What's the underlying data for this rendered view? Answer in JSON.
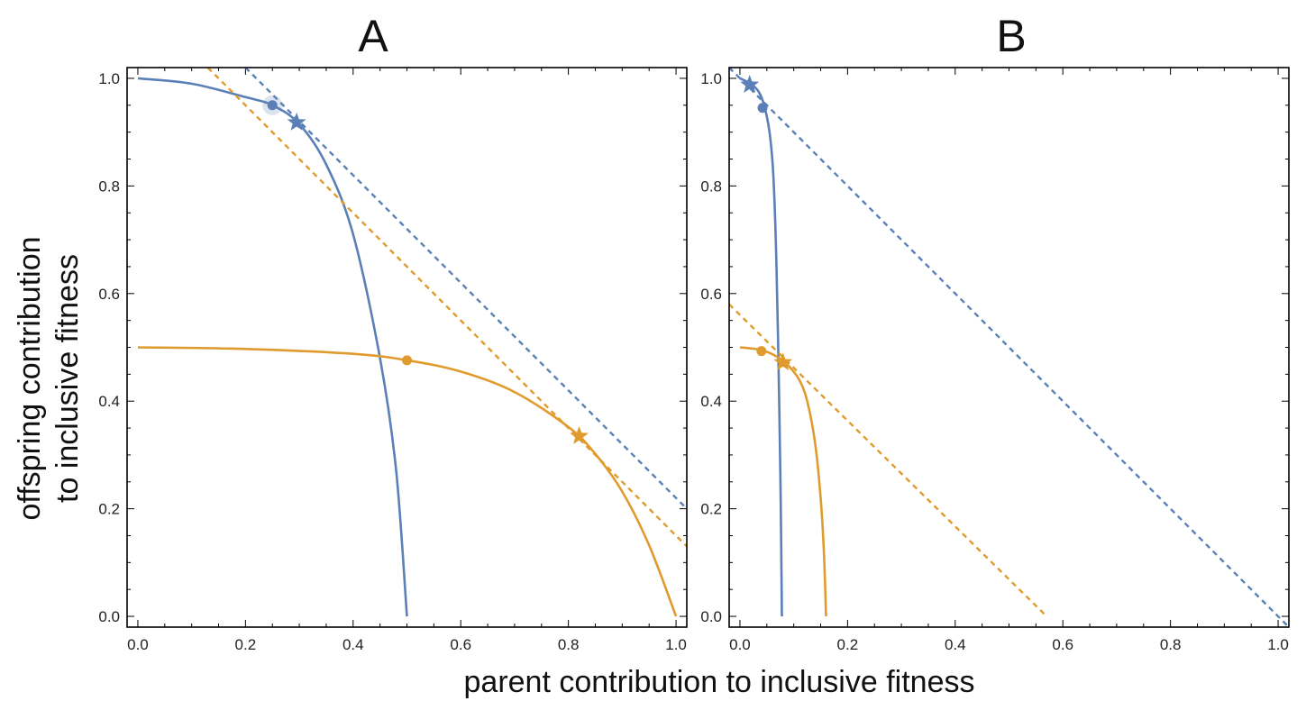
{
  "figure": {
    "xlabel": "parent contribution to inclusive fitness",
    "ylabel_line1": "offspring contribution",
    "ylabel_line2": "to inclusive fitness"
  },
  "colors": {
    "blue": "#5b80b8",
    "orange": "#e09b2e",
    "frame": "#000000"
  },
  "chart_data": [
    {
      "type": "line",
      "title": "A",
      "xlim": [
        -0.02,
        1.02
      ],
      "ylim": [
        -0.02,
        1.02
      ],
      "xticks": [
        "0.0",
        "0.2",
        "0.4",
        "0.6",
        "0.8",
        "1.0"
      ],
      "yticks": [
        "0.0",
        "0.2",
        "0.4",
        "0.6",
        "0.8",
        "1.0"
      ],
      "series": [
        {
          "color": "blue",
          "style": "solid",
          "kind": "frontier",
          "x": [
            0,
            0.1,
            0.2,
            0.25,
            0.3,
            0.35,
            0.4,
            0.45,
            0.48,
            0.5
          ],
          "y": [
            1.0,
            0.99,
            0.965,
            0.95,
            0.915,
            0.84,
            0.71,
            0.48,
            0.27,
            0.0
          ]
        },
        {
          "color": "orange",
          "style": "solid",
          "kind": "frontier",
          "x": [
            0,
            0.2,
            0.4,
            0.5,
            0.6,
            0.7,
            0.8,
            0.85,
            0.9,
            0.95,
            1.0
          ],
          "y": [
            0.5,
            0.497,
            0.488,
            0.476,
            0.455,
            0.417,
            0.352,
            0.302,
            0.232,
            0.132,
            0.0
          ]
        },
        {
          "color": "blue",
          "style": "dashed",
          "kind": "line",
          "x": [
            0.2,
            1.02
          ],
          "y": [
            1.02,
            0.2
          ]
        },
        {
          "color": "orange",
          "style": "dashed",
          "kind": "line",
          "x": [
            0.13,
            1.02
          ],
          "y": [
            1.02,
            0.13
          ]
        }
      ],
      "markers": [
        {
          "shape": "dot",
          "color": "blue",
          "halo": true,
          "x": 0.25,
          "y": 0.95
        },
        {
          "shape": "star",
          "color": "blue",
          "x": 0.295,
          "y": 0.918
        },
        {
          "shape": "dot",
          "color": "orange",
          "x": 0.5,
          "y": 0.476
        },
        {
          "shape": "star",
          "color": "orange",
          "x": 0.82,
          "y": 0.335
        }
      ]
    },
    {
      "type": "line",
      "title": "B",
      "xlim": [
        -0.02,
        1.02
      ],
      "ylim": [
        -0.02,
        1.02
      ],
      "xticks": [
        "0.0",
        "0.2",
        "0.4",
        "0.6",
        "0.8",
        "1.0"
      ],
      "yticks": [
        "0.0",
        "0.2",
        "0.4",
        "0.6",
        "0.8",
        "1.0"
      ],
      "series": [
        {
          "color": "blue",
          "style": "solid",
          "kind": "frontier",
          "x": [
            0,
            0.02,
            0.035,
            0.045,
            0.055,
            0.062,
            0.068,
            0.073,
            0.076,
            0.078
          ],
          "y": [
            1.0,
            0.99,
            0.975,
            0.95,
            0.9,
            0.82,
            0.65,
            0.4,
            0.2,
            0.0
          ]
        },
        {
          "color": "orange",
          "style": "solid",
          "kind": "frontier",
          "x": [
            0,
            0.04,
            0.07,
            0.09,
            0.11,
            0.125,
            0.14,
            0.15,
            0.156,
            0.16
          ],
          "y": [
            0.5,
            0.495,
            0.482,
            0.466,
            0.44,
            0.4,
            0.32,
            0.22,
            0.12,
            0.0
          ]
        },
        {
          "color": "blue",
          "style": "dashed",
          "kind": "line",
          "x": [
            -0.02,
            1.02
          ],
          "y": [
            1.02,
            -0.02
          ]
        },
        {
          "color": "orange",
          "style": "dashed",
          "kind": "line",
          "x": [
            -0.02,
            0.57
          ],
          "y": [
            0.58,
            0.0
          ]
        }
      ],
      "markers": [
        {
          "shape": "dot",
          "color": "blue",
          "x": 0.042,
          "y": 0.945
        },
        {
          "shape": "star",
          "color": "blue",
          "x": 0.018,
          "y": 0.988
        },
        {
          "shape": "dot",
          "color": "orange",
          "x": 0.04,
          "y": 0.493
        },
        {
          "shape": "star",
          "color": "orange",
          "x": 0.08,
          "y": 0.472
        }
      ]
    }
  ]
}
